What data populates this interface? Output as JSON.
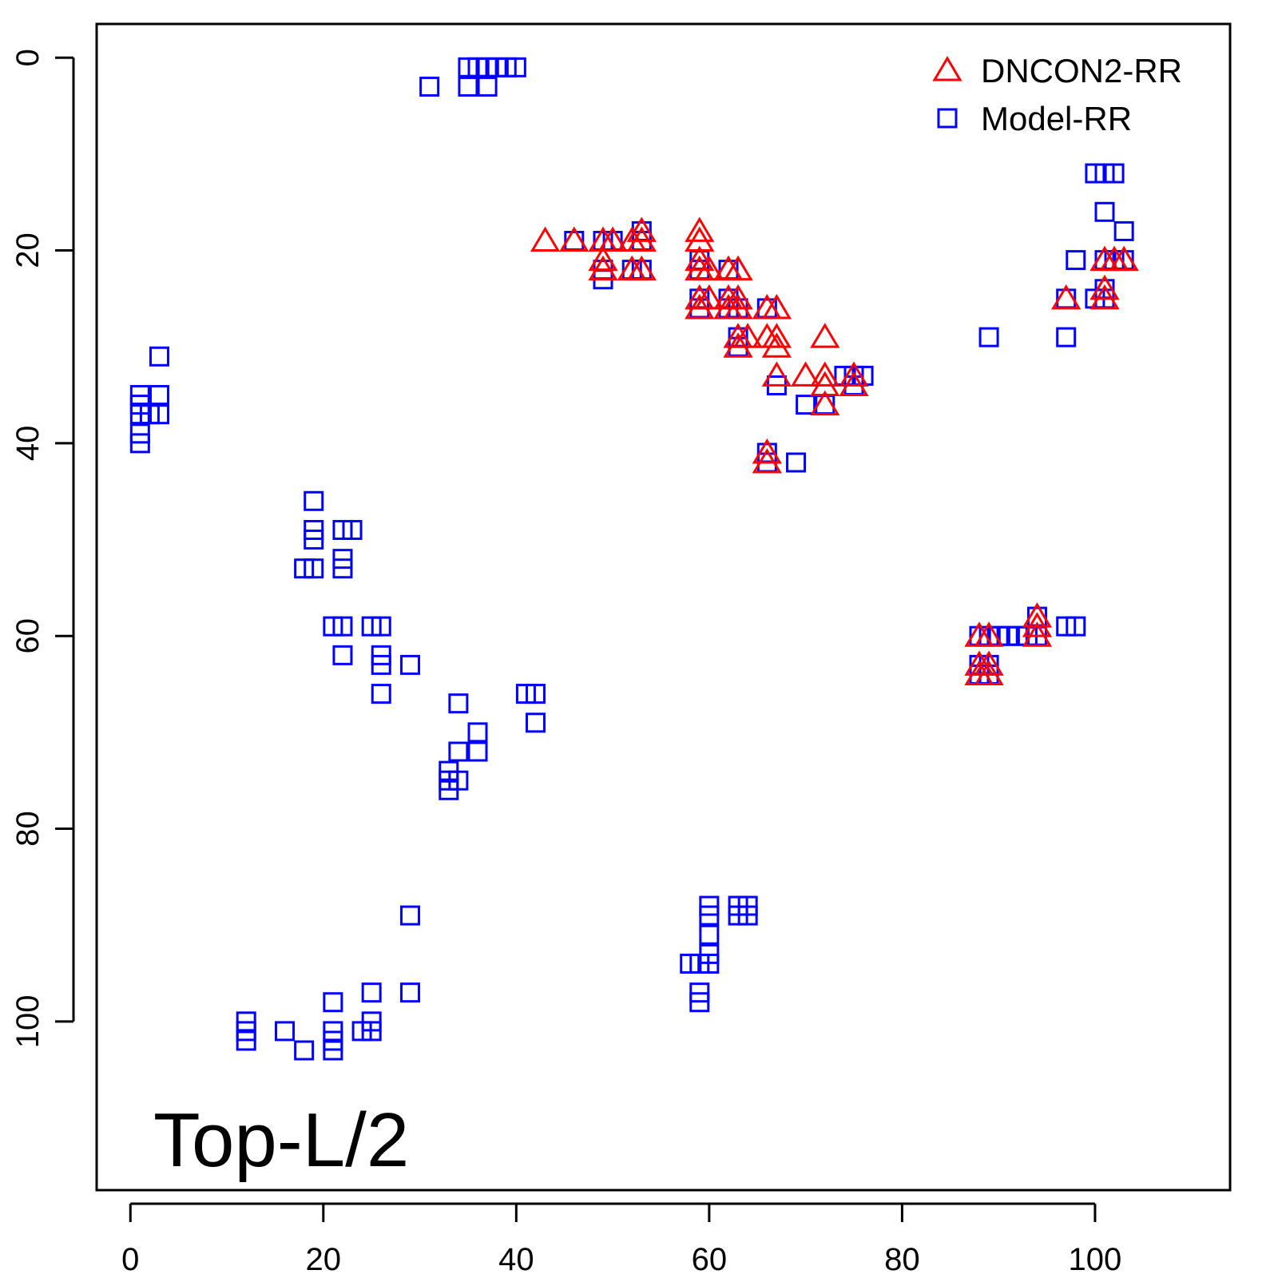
{
  "chart_data": {
    "type": "scatter",
    "title": "",
    "xlabel": "",
    "ylabel": "",
    "xlim": [
      -3.5,
      114
    ],
    "ylim": [
      117.5,
      -3.5
    ],
    "y_reversed": true,
    "x_ticks": [
      0,
      20,
      40,
      60,
      80,
      100
    ],
    "y_ticks": [
      0,
      20,
      40,
      60,
      80,
      100
    ],
    "grid": false,
    "legend_position": "top-right",
    "annotation": "Top-L/2",
    "series": [
      {
        "name": "DNCON2-RR",
        "marker": "triangle",
        "color": "#ff0000",
        "points": [
          [
            43,
            19
          ],
          [
            46,
            19
          ],
          [
            49,
            19
          ],
          [
            50,
            19
          ],
          [
            52,
            19
          ],
          [
            53,
            18
          ],
          [
            53,
            19
          ],
          [
            49,
            21
          ],
          [
            49,
            22
          ],
          [
            52,
            22
          ],
          [
            53,
            22
          ],
          [
            59,
            18
          ],
          [
            59,
            19
          ],
          [
            59,
            21
          ],
          [
            59,
            22
          ],
          [
            60,
            22
          ],
          [
            59,
            25
          ],
          [
            59,
            26
          ],
          [
            60,
            25
          ],
          [
            62,
            22
          ],
          [
            63,
            22
          ],
          [
            62,
            25
          ],
          [
            62,
            26
          ],
          [
            63,
            25
          ],
          [
            63,
            26
          ],
          [
            66,
            26
          ],
          [
            67,
            26
          ],
          [
            63,
            29
          ],
          [
            64,
            29
          ],
          [
            63,
            30
          ],
          [
            66,
            29
          ],
          [
            67,
            29
          ],
          [
            67,
            30
          ],
          [
            67,
            33
          ],
          [
            70,
            33
          ],
          [
            72,
            29
          ],
          [
            72,
            33
          ],
          [
            72,
            34
          ],
          [
            72,
            36
          ],
          [
            75,
            33
          ],
          [
            75,
            34
          ],
          [
            66,
            41
          ],
          [
            66,
            42
          ],
          [
            88,
            60
          ],
          [
            89,
            60
          ],
          [
            88,
            63
          ],
          [
            88,
            64
          ],
          [
            89,
            63
          ],
          [
            89,
            64
          ],
          [
            94,
            58
          ],
          [
            94,
            59
          ],
          [
            94,
            60
          ],
          [
            97,
            25
          ],
          [
            101,
            21
          ],
          [
            101,
            24
          ],
          [
            101,
            25
          ],
          [
            102,
            21
          ],
          [
            103,
            21
          ]
        ]
      },
      {
        "name": "Model-RR",
        "marker": "square",
        "color": "#0000ff",
        "points": [
          [
            31,
            3
          ],
          [
            35,
            1
          ],
          [
            35,
            3
          ],
          [
            36,
            1
          ],
          [
            37,
            1
          ],
          [
            37,
            3
          ],
          [
            38,
            1
          ],
          [
            39,
            1
          ],
          [
            40,
            1
          ],
          [
            3,
            31
          ],
          [
            1,
            35
          ],
          [
            1,
            36
          ],
          [
            1,
            37
          ],
          [
            1,
            39
          ],
          [
            1,
            40
          ],
          [
            2,
            37
          ],
          [
            3,
            35
          ],
          [
            3,
            37
          ],
          [
            19,
            46
          ],
          [
            19,
            49
          ],
          [
            19,
            50
          ],
          [
            18,
            53
          ],
          [
            19,
            53
          ],
          [
            22,
            49
          ],
          [
            23,
            49
          ],
          [
            22,
            52
          ],
          [
            22,
            53
          ],
          [
            21,
            59
          ],
          [
            22,
            59
          ],
          [
            22,
            62
          ],
          [
            25,
            59
          ],
          [
            26,
            59
          ],
          [
            26,
            62
          ],
          [
            26,
            63
          ],
          [
            26,
            66
          ],
          [
            29,
            63
          ],
          [
            34,
            67
          ],
          [
            36,
            70
          ],
          [
            34,
            72
          ],
          [
            36,
            72
          ],
          [
            33,
            74
          ],
          [
            33,
            75
          ],
          [
            33,
            76
          ],
          [
            34,
            75
          ],
          [
            41,
            66
          ],
          [
            42,
            66
          ],
          [
            42,
            69
          ],
          [
            29,
            89
          ],
          [
            29,
            97
          ],
          [
            25,
            97
          ],
          [
            25,
            100
          ],
          [
            25,
            101
          ],
          [
            24,
            101
          ],
          [
            21,
            98
          ],
          [
            21,
            101
          ],
          [
            21,
            102
          ],
          [
            21,
            103
          ],
          [
            18,
            103
          ],
          [
            16,
            101
          ],
          [
            12,
            100
          ],
          [
            12,
            101
          ],
          [
            12,
            102
          ],
          [
            60,
            88
          ],
          [
            60,
            89
          ],
          [
            60,
            91
          ],
          [
            60,
            93
          ],
          [
            60,
            94
          ],
          [
            59,
            94
          ],
          [
            58,
            94
          ],
          [
            59,
            97
          ],
          [
            59,
            98
          ],
          [
            63,
            88
          ],
          [
            63,
            89
          ],
          [
            64,
            88
          ],
          [
            64,
            89
          ],
          [
            46,
            19
          ],
          [
            49,
            19
          ],
          [
            49,
            22
          ],
          [
            49,
            23
          ],
          [
            50,
            19
          ],
          [
            52,
            22
          ],
          [
            53,
            18
          ],
          [
            53,
            19
          ],
          [
            53,
            22
          ],
          [
            59,
            21
          ],
          [
            59,
            22
          ],
          [
            59,
            25
          ],
          [
            59,
            26
          ],
          [
            62,
            22
          ],
          [
            62,
            25
          ],
          [
            62,
            26
          ],
          [
            63,
            26
          ],
          [
            63,
            29
          ],
          [
            63,
            30
          ],
          [
            66,
            26
          ],
          [
            67,
            34
          ],
          [
            70,
            36
          ],
          [
            72,
            36
          ],
          [
            74,
            33
          ],
          [
            75,
            33
          ],
          [
            76,
            33
          ],
          [
            75,
            34
          ],
          [
            66,
            41
          ],
          [
            66,
            42
          ],
          [
            69,
            42
          ],
          [
            88,
            60
          ],
          [
            89,
            60
          ],
          [
            90,
            60
          ],
          [
            91,
            60
          ],
          [
            92,
            60
          ],
          [
            93,
            60
          ],
          [
            94,
            58
          ],
          [
            94,
            60
          ],
          [
            97,
            59
          ],
          [
            98,
            59
          ],
          [
            88,
            63
          ],
          [
            88,
            64
          ],
          [
            89,
            63
          ],
          [
            89,
            64
          ],
          [
            89,
            29
          ],
          [
            97,
            29
          ],
          [
            98,
            21
          ],
          [
            97,
            25
          ],
          [
            100,
            25
          ],
          [
            100,
            12
          ],
          [
            101,
            12
          ],
          [
            102,
            12
          ],
          [
            101,
            16
          ],
          [
            103,
            18
          ],
          [
            101,
            21
          ],
          [
            102,
            21
          ],
          [
            103,
            21
          ],
          [
            101,
            24
          ],
          [
            101,
            25
          ]
        ]
      }
    ]
  }
}
